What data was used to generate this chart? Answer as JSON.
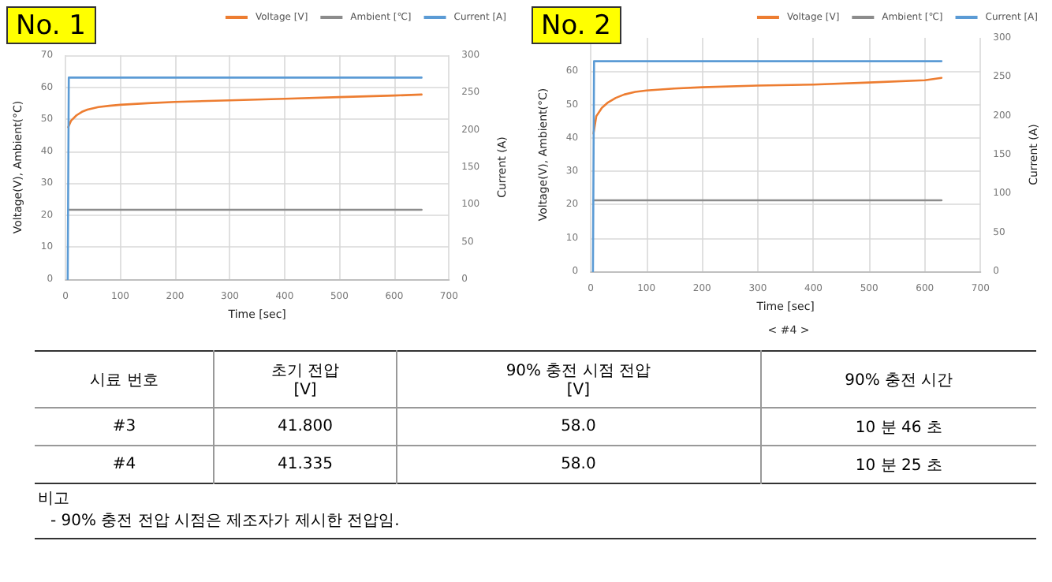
{
  "chart_data": [
    {
      "type": "line",
      "title": "No. 1",
      "xlabel": "Time [sec]",
      "ylabel": "Voltage(V), Ambient(°C)",
      "y2label": "Current (A)",
      "xlim": [
        0,
        700
      ],
      "xticks": [
        0,
        100,
        200,
        300,
        400,
        500,
        600,
        700
      ],
      "ylim": [
        0,
        70
      ],
      "yticks": [
        0,
        10,
        20,
        30,
        40,
        50,
        60,
        70
      ],
      "y2lim": [
        0,
        300
      ],
      "y2ticks": [
        0,
        50,
        100,
        150,
        200,
        250,
        300
      ],
      "grid": true,
      "legend": "top right",
      "series": [
        {
          "name": "Voltage [V]",
          "color": "#ed7d31",
          "x": [
            5,
            10,
            20,
            30,
            40,
            60,
            80,
            100,
            150,
            200,
            300,
            400,
            500,
            600,
            650
          ],
          "values": [
            47.5,
            49.5,
            51.2,
            52.3,
            53,
            53.8,
            54.2,
            54.5,
            55,
            55.4,
            55.9,
            56.4,
            56.9,
            57.4,
            57.7
          ]
        },
        {
          "name": "Ambient [℃]",
          "color": "#8c8c8c",
          "x": [
            5,
            650
          ],
          "values": [
            21.7,
            21.7
          ]
        },
        {
          "name": "Current [A]",
          "color": "#5b9bd5",
          "axis": "y2",
          "x": [
            4,
            6,
            650
          ],
          "values": [
            0,
            270,
            270
          ]
        }
      ]
    },
    {
      "type": "line",
      "title": "No. 2",
      "xlabel": "Time [sec]",
      "ylabel": "Voltage(V), Ambient(°C)",
      "y2label": "Current (A)",
      "annotations": [
        "< #4 >"
      ],
      "xlim": [
        0,
        700
      ],
      "xticks": [
        0,
        100,
        200,
        300,
        400,
        500,
        600,
        700
      ],
      "ylim": [
        0,
        70
      ],
      "yticks": [
        0,
        10,
        20,
        30,
        40,
        50,
        60
      ],
      "y2lim": [
        0,
        300
      ],
      "y2ticks": [
        0,
        50,
        100,
        150,
        200,
        250,
        300
      ],
      "grid": true,
      "legend": "top right",
      "series": [
        {
          "name": "Voltage [V]",
          "color": "#ed7d31",
          "x": [
            5,
            10,
            20,
            30,
            45,
            60,
            80,
            100,
            150,
            200,
            300,
            400,
            500,
            600,
            630
          ],
          "values": [
            41.3,
            46.5,
            49,
            50.5,
            52,
            53,
            53.8,
            54.2,
            54.8,
            55.2,
            55.7,
            56,
            56.6,
            57.3,
            58
          ]
        },
        {
          "name": "Ambient [℃]",
          "color": "#8c8c8c",
          "x": [
            5,
            630
          ],
          "values": [
            21.3,
            21.3
          ]
        },
        {
          "name": "Current [A]",
          "color": "#5b9bd5",
          "axis": "y2",
          "x": [
            4,
            6,
            630
          ],
          "values": [
            0,
            270,
            270
          ]
        }
      ]
    },
    {
      "type": "other",
      "annotations": [
        "시료 번호",
        "초기 전압\n[V]",
        "90% 충전 시점 전압\n[V]",
        "90% 충전 시간",
        "#3",
        "41.800",
        "58.0",
        "10 분 46 초",
        "#4",
        "41.335",
        "58.0",
        "10 분 25 초",
        "비고",
        "- 90% 충전 전압 시점은 제조자가 제시한 전압임."
      ]
    }
  ]
}
